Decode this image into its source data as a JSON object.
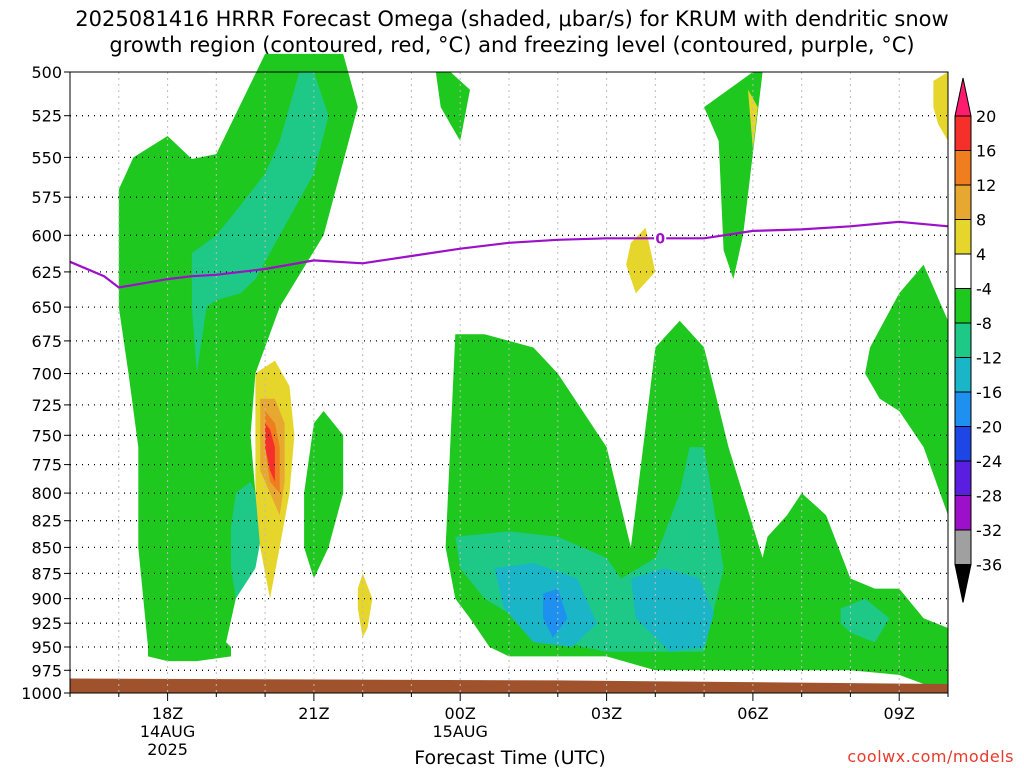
{
  "chart_data": {
    "type": "heatmap",
    "title_line1": "2025081416 HRRR Forecast Omega (shaded, μbar/s) for KRUM with dendritic snow",
    "title_line2": "growth region (contoured, red, °C) and freezing level (contoured, purple, °C)",
    "xlabel": "Forecast Time (UTC)",
    "y_ticks": [
      500,
      525,
      550,
      575,
      600,
      625,
      650,
      675,
      700,
      725,
      750,
      775,
      800,
      825,
      850,
      875,
      900,
      925,
      950,
      975,
      1000
    ],
    "ylim": [
      1000,
      500
    ],
    "x_ticks": [
      {
        "hour": 18,
        "label": "18Z",
        "date": "14AUG",
        "year": "2025"
      },
      {
        "hour": 21,
        "label": "21Z"
      },
      {
        "hour": 24,
        "label": "00Z",
        "date": "15AUG"
      },
      {
        "hour": 27,
        "label": "03Z"
      },
      {
        "hour": 30,
        "label": "06Z"
      },
      {
        "hour": 33,
        "label": "09Z"
      }
    ],
    "xlim": [
      16,
      34
    ],
    "colorbar": {
      "levels": [
        20,
        16,
        12,
        8,
        4,
        -4,
        -8,
        -12,
        -16,
        -20,
        -24,
        -28,
        -32,
        -36
      ],
      "colors": [
        "#ff1b6e",
        "#f5302b",
        "#f07d1e",
        "#e6a830",
        "#e6d62c",
        "#ffffff",
        "#1ec81e",
        "#1ec887",
        "#1ab6c8",
        "#1e90f0",
        "#1e46e6",
        "#5a1ee0",
        "#9b10c8",
        "#a0a0a0",
        "#000000"
      ]
    },
    "freezing_level": {
      "label": "0",
      "hours": [
        16,
        16.7,
        17,
        17.5,
        18,
        18.5,
        19,
        20,
        21,
        22,
        23,
        24,
        25,
        26,
        27,
        28,
        29,
        30,
        31,
        32,
        33,
        34
      ],
      "pressure": [
        618,
        628,
        636,
        633,
        630,
        628,
        627,
        623,
        617,
        619,
        614,
        609,
        605,
        603,
        602,
        602,
        602,
        597,
        596,
        594,
        591,
        594
      ]
    },
    "ground_surface": {
      "hours": [
        16,
        26,
        34
      ],
      "pressure": [
        984,
        986,
        990
      ]
    },
    "omega_regions": [
      {
        "value": -6,
        "hours": [
          17,
          17.3,
          18,
          18.5,
          19,
          20,
          20.5,
          21.6,
          21.9,
          21.2,
          20.3,
          19.8,
          19.7,
          19.8,
          19.6,
          19.4,
          19.2,
          19.3,
          19.3,
          18.6,
          18,
          17.6,
          17.6,
          17.4,
          17.4,
          17.2,
          17.0,
          17.0
        ],
        "pressure": [
          570,
          550,
          537,
          551,
          548,
          490,
          490,
          490,
          520,
          600,
          650,
          700,
          750,
          800,
          850,
          900,
          945,
          950,
          960,
          965,
          965,
          960,
          950,
          850,
          760,
          700,
          650,
          570
        ]
      },
      {
        "value": -10,
        "hours": [
          18.5,
          19.0,
          19.5,
          20.0,
          20.3,
          20.7,
          21.0,
          21.3,
          21.0,
          20.3,
          19.8,
          19.5,
          19.0,
          18.8,
          18.6,
          18.5
        ],
        "pressure": [
          612,
          600,
          580,
          560,
          540,
          500,
          500,
          525,
          560,
          600,
          630,
          640,
          645,
          650,
          700,
          650
        ]
      },
      {
        "value": -10,
        "hours": [
          19.4,
          19.7,
          20.0,
          19.8,
          19.4,
          19.3,
          19.3
        ],
        "pressure": [
          800,
          790,
          820,
          870,
          900,
          870,
          830
        ]
      },
      {
        "value": -10,
        "hours": [
          21.1,
          21.4,
          21.3,
          21.1,
          21.0,
          21.0
        ],
        "pressure": [
          760,
          800,
          820,
          830,
          810,
          780
        ]
      },
      {
        "value": -6,
        "hours": [
          21.0,
          21.2,
          21.6,
          21.6,
          21.3,
          21.0,
          20.8,
          20.8,
          21.0
        ],
        "pressure": [
          740,
          730,
          750,
          800,
          850,
          880,
          850,
          800,
          740
        ]
      },
      {
        "value": 6,
        "hours": [
          19.8,
          20.2,
          20.5,
          20.6,
          20.5,
          20.3,
          20.1,
          19.9,
          19.8,
          19.8
        ],
        "pressure": [
          700,
          690,
          710,
          750,
          800,
          850,
          900,
          850,
          800,
          750
        ]
      },
      {
        "value": 10,
        "hours": [
          19.9,
          20.2,
          20.4,
          20.4,
          20.3,
          20.1,
          19.9,
          19.9
        ],
        "pressure": [
          720,
          720,
          740,
          790,
          820,
          800,
          780,
          740
        ]
      },
      {
        "value": 14,
        "hours": [
          20.0,
          20.2,
          20.3,
          20.3,
          20.1,
          20.0
        ],
        "pressure": [
          730,
          740,
          760,
          800,
          790,
          760
        ]
      },
      {
        "value": 18,
        "hours": [
          20.0,
          20.1,
          20.2,
          20.2,
          20.1,
          20.0
        ],
        "pressure": [
          740,
          745,
          760,
          790,
          780,
          760
        ]
      },
      {
        "value": 6,
        "hours": [
          22.0,
          22.2,
          22.1,
          22.0,
          21.9,
          21.9
        ],
        "pressure": [
          875,
          900,
          930,
          940,
          910,
          890
        ]
      },
      {
        "value": -6,
        "hours": [
          23.7,
          23.9,
          24.5,
          25.5,
          26,
          27,
          27.5,
          28,
          28.5,
          29,
          29.5,
          30,
          30.2,
          30.3,
          30.7,
          31,
          31.5,
          32,
          32.5,
          33,
          33.5,
          34,
          34,
          33.5,
          33,
          32,
          31,
          30,
          29,
          28,
          27,
          26,
          25,
          24.6,
          24.2,
          23.9,
          23.7
        ],
        "pressure": [
          850,
          670,
          670,
          680,
          700,
          760,
          850,
          680,
          660,
          680,
          760,
          830,
          860,
          840,
          820,
          800,
          820,
          880,
          890,
          890,
          920,
          930,
          990,
          990,
          980,
          975,
          975,
          975,
          975,
          975,
          960,
          960,
          960,
          950,
          920,
          900,
          850
        ]
      },
      {
        "value": -6,
        "hours": [
          29.0,
          30.0,
          30.2,
          29.8,
          29.6,
          29.4,
          29.3
        ],
        "pressure": [
          520,
          500,
          500,
          600,
          630,
          610,
          540
        ]
      },
      {
        "value": -6,
        "hours": [
          32.4,
          33.0,
          33.5,
          34.0,
          34.0,
          33.5,
          33.0,
          32.6,
          32.3
        ],
        "pressure": [
          680,
          640,
          620,
          660,
          820,
          760,
          730,
          720,
          700
        ]
      },
      {
        "value": -6,
        "hours": [
          23.5,
          23.8,
          24.2,
          24.0,
          23.8,
          23.6
        ],
        "pressure": [
          500,
          500,
          510,
          540,
          530,
          520
        ]
      },
      {
        "value": -10,
        "hours": [
          23.9,
          25.0,
          26.0,
          27.0,
          27.3,
          28.0,
          28.5,
          28.7,
          29.0,
          29.4,
          29.0,
          28.0,
          27.0,
          26.5,
          26.0,
          25.0,
          24.5,
          24.0
        ],
        "pressure": [
          840,
          835,
          840,
          860,
          880,
          860,
          800,
          760,
          760,
          870,
          955,
          955,
          955,
          950,
          940,
          915,
          900,
          870
        ]
      },
      {
        "value": -14,
        "hours": [
          24.7,
          25.5,
          26.4,
          26.8,
          26.3,
          25.5,
          24.9
        ],
        "pressure": [
          870,
          865,
          880,
          925,
          950,
          945,
          910
        ]
      },
      {
        "value": -14,
        "hours": [
          27.5,
          28.2,
          28.9,
          29.2,
          29.0,
          28.3,
          27.6
        ],
        "pressure": [
          880,
          870,
          880,
          915,
          950,
          955,
          920
        ]
      },
      {
        "value": -18,
        "hours": [
          25.7,
          26.0,
          26.2,
          25.9,
          25.7
        ],
        "pressure": [
          895,
          890,
          920,
          940,
          920
        ]
      },
      {
        "value": -10,
        "hours": [
          31.8,
          32.3,
          32.8,
          32.5,
          32.0,
          31.8
        ],
        "pressure": [
          910,
          900,
          920,
          945,
          935,
          925
        ]
      },
      {
        "value": 6,
        "hours": [
          29.8,
          30.1,
          30.0,
          29.9,
          29.8
        ],
        "pressure": [
          505,
          520,
          545,
          510,
          505
        ]
      },
      {
        "value": 6,
        "hours": [
          27.5,
          27.8,
          28.0,
          27.6,
          27.4,
          27.5
        ],
        "pressure": [
          605,
          595,
          625,
          640,
          620,
          605
        ]
      },
      {
        "value": 6,
        "hours": [
          33.7,
          34.0,
          34.0,
          33.8,
          33.7
        ],
        "pressure": [
          505,
          500,
          540,
          530,
          520
        ]
      }
    ],
    "credit": "coolwx.com/models"
  }
}
